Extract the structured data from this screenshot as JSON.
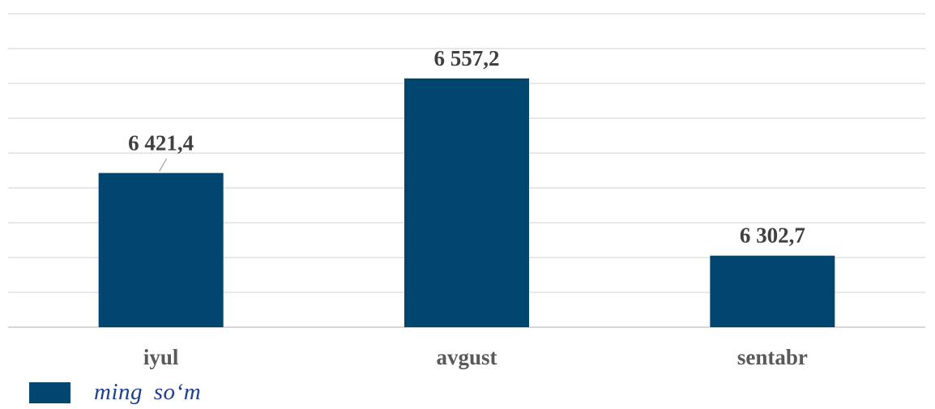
{
  "chart_data": {
    "type": "bar",
    "categories": [
      "iyul",
      "avgust",
      "sentabr"
    ],
    "series": [
      {
        "name": "ming so‘m",
        "values": [
          6421.4,
          6557.2,
          6302.7
        ],
        "labels": [
          "6 421,4",
          "6 557,2",
          "6 302,7"
        ]
      }
    ],
    "ylim": [
      6200,
      6650
    ],
    "grid": true,
    "legend_position": "bottom-left",
    "bar_color": "#00466e"
  }
}
